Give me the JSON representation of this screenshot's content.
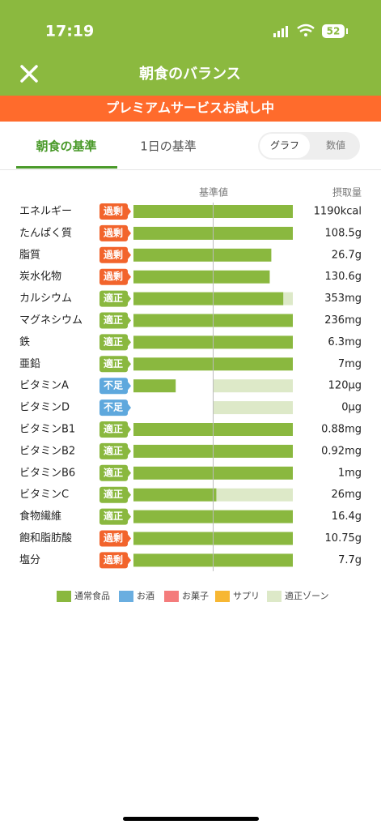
{
  "status_bar": {
    "time": "17:19",
    "battery": "52"
  },
  "header": {
    "title": "朝食のバランス"
  },
  "banner": "プレミアムサービスお試し中",
  "tabs": [
    "朝食の基準",
    "1日の基準"
  ],
  "toggle": [
    "グラフ",
    "数値"
  ],
  "chart_data": {
    "type": "bar",
    "orientation": "horizontal",
    "reference_label": "基準値",
    "reference_value": 100,
    "value_header": "摂取量",
    "xlim": [
      0,
      200
    ],
    "categories": [
      "エネルギー",
      "たんぱく質",
      "脂質",
      "炭水化物",
      "カルシウム",
      "マグネシウム",
      "鉄",
      "亜鉛",
      "ビタミンA",
      "ビタミンD",
      "ビタミンB1",
      "ビタミンB2",
      "ビタミンB6",
      "ビタミンC",
      "食物繊維",
      "飽和脂肪酸",
      "塩分"
    ],
    "values": [
      200,
      200,
      173,
      171,
      188,
      200,
      200,
      200,
      53,
      0,
      200,
      200,
      200,
      104,
      200,
      200,
      200
    ],
    "zones": [
      null,
      null,
      null,
      null,
      [
        100,
        200
      ],
      null,
      null,
      null,
      [
        100,
        200
      ],
      [
        100,
        200
      ],
      null,
      null,
      null,
      [
        100,
        200
      ],
      null,
      null,
      null
    ],
    "status": [
      "過剰",
      "過剰",
      "過剰",
      "過剰",
      "適正",
      "適正",
      "適正",
      "適正",
      "不足",
      "不足",
      "適正",
      "適正",
      "適正",
      "適正",
      "適正",
      "過剰",
      "過剰"
    ],
    "status_colors": {
      "過剰": "#f2642c",
      "適正": "#8ab83f",
      "不足": "#5ea8dd"
    },
    "intake": [
      "1190kcal",
      "108.5g",
      "26.7g",
      "130.6g",
      "353mg",
      "236mg",
      "6.3mg",
      "7mg",
      "120µg",
      "0µg",
      "0.88mg",
      "0.92mg",
      "1mg",
      "26mg",
      "16.4g",
      "10.75g",
      "7.7g"
    ],
    "legend": [
      {
        "name": "通常食品",
        "color": "#8ab83f"
      },
      {
        "name": "お酒",
        "color": "#6aaee0"
      },
      {
        "name": "お菓子",
        "color": "#f47c7c"
      },
      {
        "name": "サプリ",
        "color": "#f7b733"
      },
      {
        "name": "適正ゾーン",
        "color": "#dde9c8"
      }
    ]
  }
}
